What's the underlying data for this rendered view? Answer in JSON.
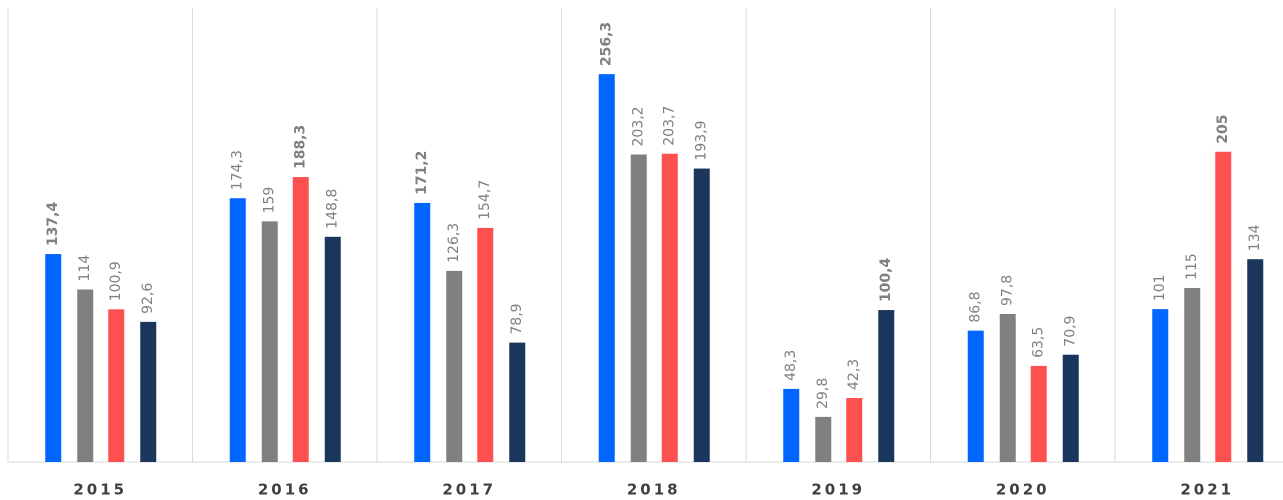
{
  "chart_data": {
    "type": "bar",
    "categories": [
      "2015",
      "2016",
      "2017",
      "2018",
      "2019",
      "2020",
      "2021"
    ],
    "series": [
      {
        "color": "#0066ff",
        "values": [
          137.4,
          174.3,
          171.2,
          256.3,
          48.3,
          86.8,
          101
        ],
        "value_labels": [
          "137,4",
          "174,3",
          "171,2",
          "256,3",
          "48,3",
          "86,8",
          "101"
        ]
      },
      {
        "color": "#808080",
        "values": [
          114,
          159,
          126.3,
          203.2,
          29.8,
          97.8,
          115
        ],
        "value_labels": [
          "114",
          "159",
          "126,3",
          "203,2",
          "29,8",
          "97,8",
          "115"
        ]
      },
      {
        "color": "#ff5050",
        "values": [
          100.9,
          188.3,
          154.7,
          203.7,
          42.3,
          63.5,
          205
        ],
        "value_labels": [
          "100,9",
          "188,3",
          "154,7",
          "203,7",
          "42,3",
          "63,5",
          "205"
        ]
      },
      {
        "color": "#1b365d",
        "values": [
          92.6,
          148.8,
          78.9,
          193.9,
          100.4,
          70.9,
          134
        ],
        "value_labels": [
          "92,6",
          "148,8",
          "78,9",
          "193,9",
          "100,4",
          "70,9",
          "134"
        ]
      }
    ],
    "highlight": [
      0,
      2,
      0,
      0,
      3,
      null,
      2
    ],
    "ylim": [
      0,
      300
    ],
    "yticks": []
  }
}
